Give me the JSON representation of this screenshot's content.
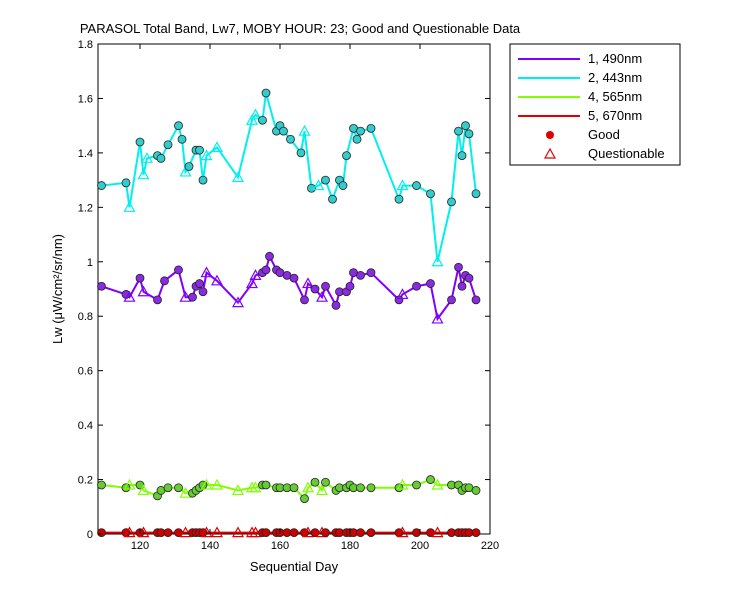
{
  "chart_data": {
    "type": "line",
    "title": "PARASOL Total Band,  Lw7, MOBY HOUR: 23;  Good and Questionable Data",
    "xlabel": "Sequential Day",
    "ylabel": "Lw (μW/cm²/sr/nm)",
    "xlim": [
      108,
      220
    ],
    "ylim": [
      0,
      1.8
    ],
    "xticks": [
      120,
      140,
      160,
      180,
      200,
      220
    ],
    "yticks": [
      0,
      0.2,
      0.4,
      0.6,
      0.8,
      1,
      1.2,
      1.4,
      1.6,
      1.8
    ],
    "xtick_labels": [
      "120",
      "140",
      "160",
      "180",
      "200",
      "220"
    ],
    "ytick_labels": [
      "0",
      "0.2",
      "0.4",
      "0.6",
      "0.8",
      "1",
      "1.2",
      "1.4",
      "1.6",
      "1.8"
    ],
    "grid": false,
    "legend_position": "outside-top-right",
    "legend": [
      {
        "label": "1, 490nm",
        "kind": "line",
        "color": "#7F00FF"
      },
      {
        "label": "2, 443nm",
        "kind": "line",
        "color": "#00F0F0"
      },
      {
        "label": "4, 565nm",
        "kind": "line",
        "color": "#80FF00"
      },
      {
        "label": "5, 670nm",
        "kind": "line",
        "color": "#E00000"
      },
      {
        "label": "Good",
        "kind": "circle",
        "color": "#E00000"
      },
      {
        "label": "Questionable",
        "kind": "triangle",
        "color": "#E00000"
      }
    ],
    "series": [
      {
        "name": "1, 490nm",
        "color": "#7F00FF",
        "marker_fill": "#8A2BE2",
        "points": [
          [
            109,
            0.91,
            "g"
          ],
          [
            116,
            0.88,
            "g"
          ],
          [
            117,
            0.87,
            "q"
          ],
          [
            120,
            0.94,
            "g"
          ],
          [
            121,
            0.89,
            "q"
          ],
          [
            125,
            0.86,
            "g"
          ],
          [
            127,
            0.93,
            "g"
          ],
          [
            131,
            0.97,
            "g"
          ],
          [
            133,
            0.87,
            "q"
          ],
          [
            135,
            0.87,
            "g"
          ],
          [
            136,
            0.91,
            "g"
          ],
          [
            137,
            0.92,
            "g"
          ],
          [
            138,
            0.89,
            "g"
          ],
          [
            139,
            0.96,
            "q"
          ],
          [
            142,
            0.93,
            "q"
          ],
          [
            148,
            0.85,
            "q"
          ],
          [
            152,
            0.92,
            "q"
          ],
          [
            153,
            0.95,
            "q"
          ],
          [
            155,
            0.96,
            "g"
          ],
          [
            156,
            0.97,
            "g"
          ],
          [
            157,
            1.02,
            "g"
          ],
          [
            159,
            0.97,
            "g"
          ],
          [
            160,
            0.96,
            "g"
          ],
          [
            162,
            0.95,
            "g"
          ],
          [
            164,
            0.94,
            "g"
          ],
          [
            167,
            0.86,
            "g"
          ],
          [
            168,
            0.92,
            "q"
          ],
          [
            170,
            0.9,
            "g"
          ],
          [
            172,
            0.87,
            "q"
          ],
          [
            173,
            0.91,
            "g"
          ],
          [
            176,
            0.84,
            "g"
          ],
          [
            177,
            0.89,
            "g"
          ],
          [
            179,
            0.89,
            "g"
          ],
          [
            180,
            0.91,
            "g"
          ],
          [
            181,
            0.96,
            "g"
          ],
          [
            183,
            0.95,
            "g"
          ],
          [
            186,
            0.96,
            "g"
          ],
          [
            194,
            0.86,
            "g"
          ],
          [
            195,
            0.88,
            "q"
          ],
          [
            199,
            0.91,
            "g"
          ],
          [
            203,
            0.92,
            "g"
          ],
          [
            205,
            0.79,
            "q"
          ],
          [
            209,
            0.86,
            "g"
          ],
          [
            211,
            0.98,
            "g"
          ],
          [
            212,
            0.91,
            "g"
          ],
          [
            213,
            0.95,
            "g"
          ],
          [
            214,
            0.94,
            "g"
          ],
          [
            216,
            0.86,
            "g"
          ]
        ]
      },
      {
        "name": "2, 443nm",
        "color": "#00F0F0",
        "marker_fill": "#33CCCC",
        "points": [
          [
            109,
            1.28,
            "g"
          ],
          [
            116,
            1.29,
            "g"
          ],
          [
            117,
            1.2,
            "q"
          ],
          [
            120,
            1.44,
            "g"
          ],
          [
            121,
            1.32,
            "q"
          ],
          [
            122,
            1.38,
            "q"
          ],
          [
            125,
            1.39,
            "g"
          ],
          [
            126,
            1.38,
            "g"
          ],
          [
            128,
            1.43,
            "g"
          ],
          [
            131,
            1.5,
            "g"
          ],
          [
            132,
            1.45,
            "g"
          ],
          [
            133,
            1.33,
            "q"
          ],
          [
            134,
            1.35,
            "g"
          ],
          [
            136,
            1.41,
            "g"
          ],
          [
            137,
            1.41,
            "g"
          ],
          [
            138,
            1.3,
            "g"
          ],
          [
            139,
            1.39,
            "q"
          ],
          [
            142,
            1.42,
            "q"
          ],
          [
            148,
            1.31,
            "q"
          ],
          [
            152,
            1.52,
            "q"
          ],
          [
            153,
            1.54,
            "q"
          ],
          [
            155,
            1.52,
            "g"
          ],
          [
            156,
            1.62,
            "g"
          ],
          [
            159,
            1.48,
            "g"
          ],
          [
            160,
            1.5,
            "g"
          ],
          [
            161,
            1.48,
            "g"
          ],
          [
            163,
            1.45,
            "g"
          ],
          [
            166,
            1.4,
            "g"
          ],
          [
            167,
            1.48,
            "q"
          ],
          [
            169,
            1.27,
            "g"
          ],
          [
            171,
            1.28,
            "q"
          ],
          [
            173,
            1.3,
            "g"
          ],
          [
            175,
            1.23,
            "g"
          ],
          [
            177,
            1.3,
            "g"
          ],
          [
            178,
            1.28,
            "g"
          ],
          [
            179,
            1.39,
            "g"
          ],
          [
            181,
            1.49,
            "g"
          ],
          [
            182,
            1.45,
            "g"
          ],
          [
            183,
            1.48,
            "g"
          ],
          [
            186,
            1.49,
            "g"
          ],
          [
            194,
            1.23,
            "g"
          ],
          [
            195,
            1.28,
            "q"
          ],
          [
            199,
            1.28,
            "g"
          ],
          [
            203,
            1.25,
            "g"
          ],
          [
            205,
            1.0,
            "q"
          ],
          [
            209,
            1.22,
            "g"
          ],
          [
            211,
            1.48,
            "g"
          ],
          [
            212,
            1.39,
            "g"
          ],
          [
            213,
            1.5,
            "g"
          ],
          [
            214,
            1.47,
            "g"
          ],
          [
            216,
            1.25,
            "g"
          ]
        ]
      },
      {
        "name": "4, 565nm",
        "color": "#80FF00",
        "marker_fill": "#66CC33",
        "points": [
          [
            109,
            0.18,
            "g"
          ],
          [
            116,
            0.17,
            "g"
          ],
          [
            117,
            0.18,
            "q"
          ],
          [
            120,
            0.18,
            "g"
          ],
          [
            121,
            0.16,
            "q"
          ],
          [
            125,
            0.14,
            "g"
          ],
          [
            126,
            0.16,
            "g"
          ],
          [
            128,
            0.17,
            "g"
          ],
          [
            131,
            0.17,
            "g"
          ],
          [
            133,
            0.15,
            "q"
          ],
          [
            135,
            0.15,
            "g"
          ],
          [
            136,
            0.16,
            "g"
          ],
          [
            137,
            0.17,
            "g"
          ],
          [
            138,
            0.18,
            "g"
          ],
          [
            139,
            0.18,
            "q"
          ],
          [
            142,
            0.18,
            "q"
          ],
          [
            148,
            0.16,
            "q"
          ],
          [
            152,
            0.17,
            "q"
          ],
          [
            153,
            0.17,
            "q"
          ],
          [
            155,
            0.18,
            "g"
          ],
          [
            156,
            0.18,
            "g"
          ],
          [
            159,
            0.17,
            "g"
          ],
          [
            160,
            0.17,
            "g"
          ],
          [
            162,
            0.17,
            "g"
          ],
          [
            164,
            0.17,
            "g"
          ],
          [
            167,
            0.13,
            "g"
          ],
          [
            168,
            0.17,
            "q"
          ],
          [
            170,
            0.19,
            "g"
          ],
          [
            172,
            0.16,
            "q"
          ],
          [
            173,
            0.19,
            "g"
          ],
          [
            176,
            0.16,
            "g"
          ],
          [
            177,
            0.17,
            "g"
          ],
          [
            179,
            0.17,
            "g"
          ],
          [
            180,
            0.18,
            "g"
          ],
          [
            181,
            0.17,
            "g"
          ],
          [
            183,
            0.17,
            "g"
          ],
          [
            186,
            0.17,
            "g"
          ],
          [
            194,
            0.17,
            "g"
          ],
          [
            195,
            0.18,
            "q"
          ],
          [
            199,
            0.18,
            "g"
          ],
          [
            203,
            0.2,
            "g"
          ],
          [
            205,
            0.18,
            "q"
          ],
          [
            209,
            0.18,
            "g"
          ],
          [
            211,
            0.18,
            "g"
          ],
          [
            212,
            0.16,
            "g"
          ],
          [
            213,
            0.17,
            "g"
          ],
          [
            214,
            0.17,
            "g"
          ],
          [
            216,
            0.16,
            "g"
          ]
        ]
      },
      {
        "name": "5, 670nm",
        "color": "#E00000",
        "marker_fill": "#CC0000",
        "points": [
          [
            109,
            0.005,
            "g"
          ],
          [
            116,
            0.005,
            "g"
          ],
          [
            117,
            0.005,
            "q"
          ],
          [
            120,
            0.005,
            "g"
          ],
          [
            121,
            0.005,
            "q"
          ],
          [
            125,
            0.005,
            "g"
          ],
          [
            126,
            0.005,
            "g"
          ],
          [
            128,
            0.005,
            "g"
          ],
          [
            131,
            0.005,
            "g"
          ],
          [
            133,
            0.005,
            "q"
          ],
          [
            135,
            0.005,
            "g"
          ],
          [
            136,
            0.005,
            "g"
          ],
          [
            137,
            0.005,
            "g"
          ],
          [
            138,
            0.005,
            "g"
          ],
          [
            139,
            0.005,
            "q"
          ],
          [
            142,
            0.005,
            "q"
          ],
          [
            148,
            0.005,
            "q"
          ],
          [
            152,
            0.005,
            "q"
          ],
          [
            153,
            0.005,
            "q"
          ],
          [
            155,
            0.005,
            "g"
          ],
          [
            156,
            0.005,
            "g"
          ],
          [
            159,
            0.005,
            "g"
          ],
          [
            160,
            0.005,
            "g"
          ],
          [
            162,
            0.005,
            "g"
          ],
          [
            164,
            0.005,
            "g"
          ],
          [
            167,
            0.005,
            "g"
          ],
          [
            168,
            0.005,
            "q"
          ],
          [
            170,
            0.005,
            "g"
          ],
          [
            172,
            0.005,
            "q"
          ],
          [
            173,
            0.005,
            "g"
          ],
          [
            176,
            0.005,
            "g"
          ],
          [
            177,
            0.005,
            "g"
          ],
          [
            179,
            0.005,
            "g"
          ],
          [
            180,
            0.005,
            "g"
          ],
          [
            181,
            0.005,
            "g"
          ],
          [
            183,
            0.005,
            "g"
          ],
          [
            186,
            0.005,
            "g"
          ],
          [
            194,
            0.005,
            "g"
          ],
          [
            195,
            0.005,
            "q"
          ],
          [
            199,
            0.005,
            "g"
          ],
          [
            203,
            0.005,
            "g"
          ],
          [
            205,
            0.005,
            "q"
          ],
          [
            209,
            0.005,
            "g"
          ],
          [
            211,
            0.005,
            "g"
          ],
          [
            212,
            0.005,
            "g"
          ],
          [
            213,
            0.005,
            "g"
          ],
          [
            214,
            0.005,
            "g"
          ],
          [
            216,
            0.005,
            "g"
          ]
        ]
      }
    ]
  }
}
